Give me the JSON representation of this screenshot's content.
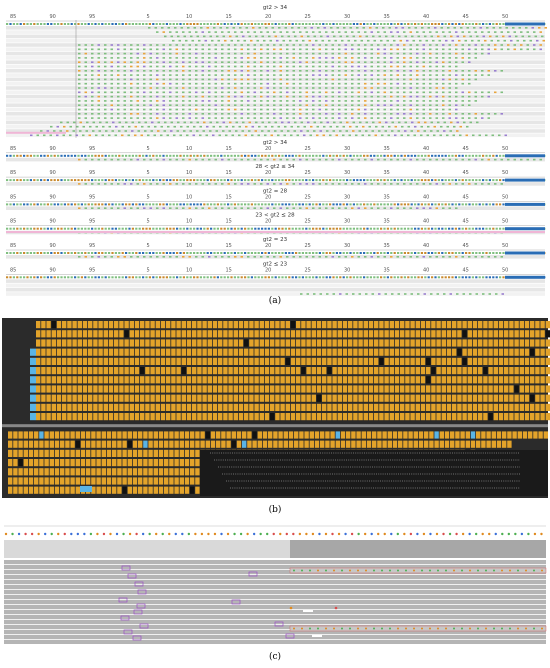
{
  "panel_a": {
    "ruler_ticks": [
      "85",
      "90",
      "95",
      "5",
      "10",
      "15",
      "20",
      "25",
      "30",
      "35",
      "40",
      "45",
      "50"
    ],
    "section_labels": [
      "gt2 > 34",
      "gt2 > 34",
      "28 < gt2 ≤ 34",
      "gt2 = 28",
      "23 < gt2 ≤ 28",
      "gt2 = 23",
      "gt2 ≤ 23"
    ],
    "colors": {
      "read": "#f2f2f2",
      "alt_read": "#e6e6e6",
      "base_a": "#7fbf7f",
      "base_c": "#e8a53d",
      "base_g": "#9a7fd0",
      "base_t": "#d94c4c",
      "ruler": "#2a6db5",
      "pink": "#f0b6d6"
    }
  },
  "panel_b": {
    "colors": {
      "background": "#2b2b2b",
      "read": "#e3a32a",
      "gap": "#111111",
      "highlight": "#5ab4e5",
      "divider": "#888888"
    }
  },
  "panel_c": {
    "sequence": "gacttgcagtcccagtgcagtcagagccaggggcgaagcaatgttgggcgtgctagcggcagtcgcgtatgcaggcaaacagg",
    "colors": {
      "read": "#b5b5b5",
      "insertion": "#9b4fc7",
      "mismatch": "#d94c4c",
      "header": "#d9d9d9"
    }
  },
  "captions": {
    "a": "(a)",
    "b": "(b)",
    "c": "(c)"
  }
}
